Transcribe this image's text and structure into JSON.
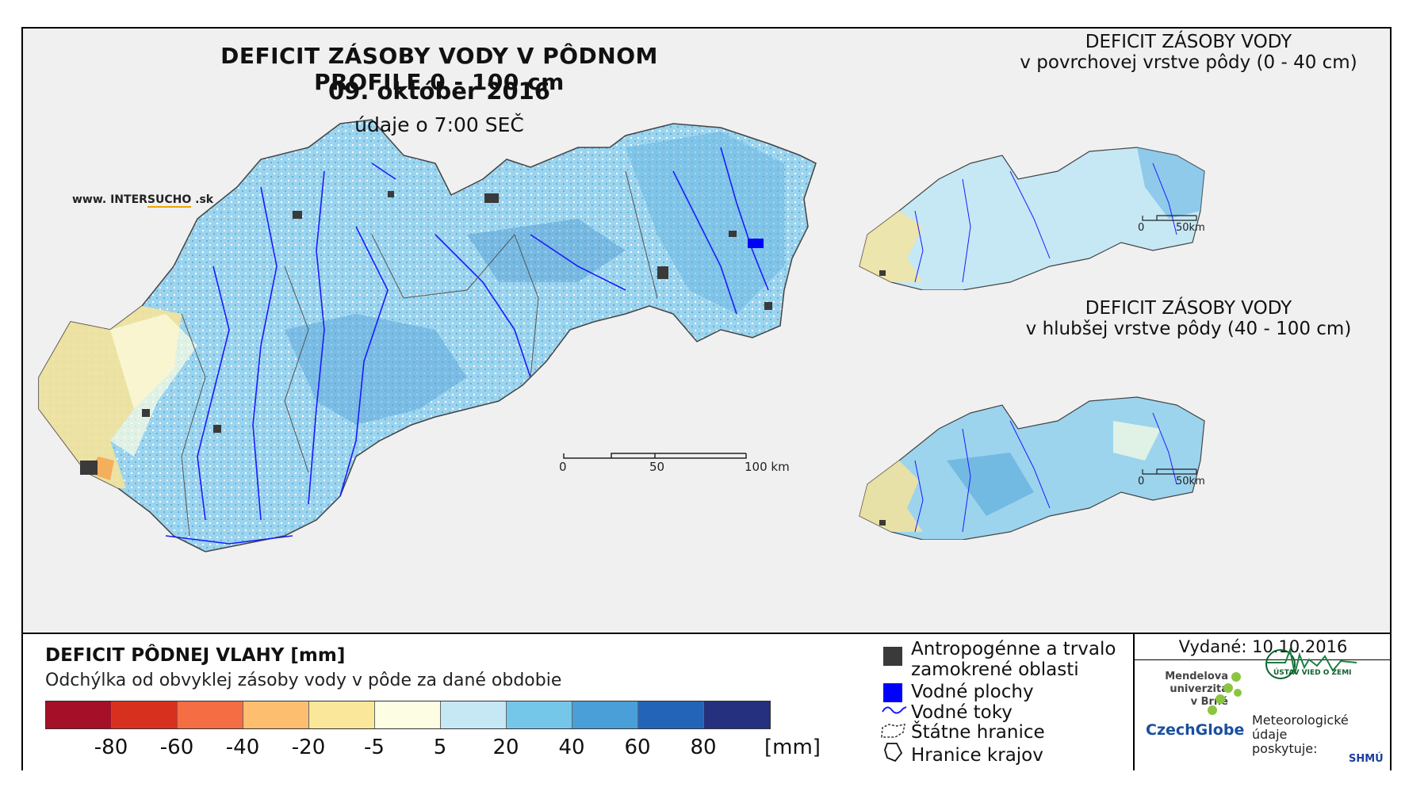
{
  "header": {
    "title": "DEFICIT ZÁSOBY VODY V PÔDNOM PROFILE 0 - 100 cm",
    "date": "09. október 2016",
    "time": "údaje o 7:00 SEČ",
    "url_prefix": "www. INTER",
    "url_highlight": "SUCHO",
    "url_suffix": " .sk"
  },
  "inset_top": {
    "title_line1": "DEFICIT ZÁSOBY VODY",
    "title_line2": "v povrchovej vrstve pôdy (0 - 40 cm)",
    "scale_0": "0",
    "scale_end": "50km"
  },
  "inset_bottom": {
    "title_line1": "DEFICIT ZÁSOBY VODY",
    "title_line2": "v hlubšej vrstve pôdy (40 - 100 cm)",
    "scale_0": "0",
    "scale_end": "50km"
  },
  "main_scale": {
    "label_0": "0",
    "label_50": "50",
    "label_100": "100 km"
  },
  "legend": {
    "title": "DEFICIT PÔDNEJ VLAHY [mm]",
    "subtitle": "Odchýlka od obvyklej zásoby vody v pôde za dané obdobie",
    "colors": [
      "#a50f28",
      "#d7301f",
      "#f46d43",
      "#fdbf6f",
      "#fae79a",
      "#fdfde3",
      "#c6e8f5",
      "#74c7e8",
      "#4a9fd8",
      "#2464b8",
      "#25307f"
    ],
    "ticks": [
      "-80",
      "-60",
      "-40",
      "-20",
      "-5",
      "5",
      "20",
      "40",
      "60",
      "80"
    ],
    "unit": "[mm]"
  },
  "symbols": {
    "anthro_line1": "Antropogénne a trvalo",
    "anthro_line2": "zamokrené oblasti",
    "water_bodies": "Vodné plochy",
    "rivers": "Vodné toky",
    "state_border": "Štátne hranice",
    "region_border": "Hranice krajov",
    "anthro_color": "#3a3a3a",
    "water_color": "#0000ff",
    "river_color": "#1a1aff"
  },
  "credits": {
    "issued": "Vydané: 10.10.2016",
    "mendel_line1": "Mendelova",
    "mendel_line2": "univerzita",
    "mendel_line3": "v Brně",
    "czechglobe": "CzechGlobe",
    "ustav": "ÚSTAV VIED O ZEMI",
    "meteo_line1": "Meteorologické",
    "meteo_line2": "údaje",
    "meteo_line3": "poskytuje:",
    "shmu": "SHMÚ"
  }
}
